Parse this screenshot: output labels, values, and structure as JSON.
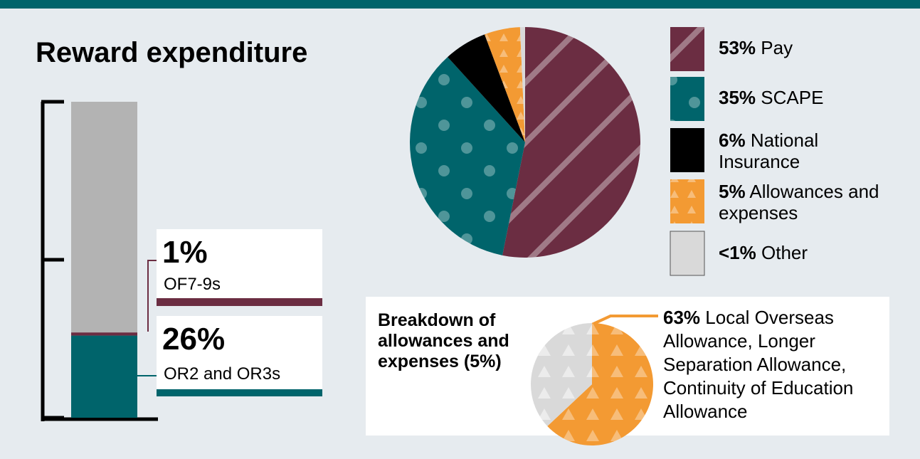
{
  "title": "Reward expenditure",
  "chart_data": [
    {
      "type": "bar",
      "stacked": true,
      "series": [
        {
          "name": "OR2 and OR3s",
          "color": "#00646b",
          "values": [
            26
          ],
          "value_labels": [
            "26%"
          ]
        },
        {
          "name": "OF7-9s",
          "color": "#6b2d42",
          "values": [
            1
          ],
          "value_labels": [
            "1%"
          ]
        },
        {
          "name": null,
          "color": "#b3b3b3",
          "values": [
            73
          ]
        }
      ],
      "ylim": [
        0,
        100
      ],
      "yticks": [
        0,
        50,
        100
      ]
    },
    {
      "type": "pie",
      "categories": [
        "Pay",
        "SCAPE",
        "National Insurance",
        "Allowances and expenses",
        "Other"
      ],
      "values": [
        53,
        35,
        6,
        5,
        0.7
      ],
      "value_labels": [
        "53%",
        "35%",
        "6%",
        "5%",
        "<1%"
      ],
      "colors": [
        "#6b2d42",
        "#00646b",
        "#000000",
        "#f39a33",
        "#d9d9d9"
      ],
      "patterns": [
        "stripes",
        "dots",
        null,
        "triangles",
        null
      ]
    },
    {
      "type": "pie",
      "title": "Breakdown of allowances and expenses (5%)",
      "categories": [
        "Local Overseas Allowance, Longer Separation Allowance, Continuity of Education Allowance",
        null
      ],
      "values": [
        63,
        37
      ],
      "value_labels": [
        "63%",
        null
      ],
      "colors": [
        "#f39a33",
        "#d9d9d9"
      ]
    }
  ]
}
